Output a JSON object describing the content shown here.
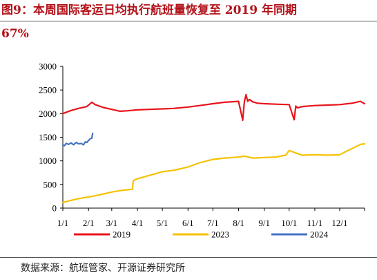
{
  "title_line1": "图9：本周国际客运日均执行航班量恢复至 2019 年同期",
  "title_line2": "67%",
  "source": "数据来源：航班管家、开源证券研究所",
  "chart_data": {
    "type": "line",
    "title": "图9：本周国际客运日均执行航班量恢复至 2019 年同期 67%",
    "xlabel": "",
    "ylabel": "",
    "x_ticks": [
      "1/1",
      "2/1",
      "3/1",
      "4/1",
      "5/1",
      "6/1",
      "7/1",
      "8/1",
      "9/1",
      "10/1",
      "11/1",
      "12/1"
    ],
    "y_ticks": [
      0,
      500,
      1000,
      1500,
      2000,
      2500,
      3000
    ],
    "ylim": [
      0,
      3000
    ],
    "x_unit": "day of year",
    "xlim": [
      1,
      365
    ],
    "grid": false,
    "legend_position": "bottom",
    "series": [
      {
        "name": "2019",
        "color": "#e8141c",
        "x": [
          1,
          10,
          20,
          30,
          36,
          40,
          50,
          60,
          70,
          80,
          91,
          105,
          121,
          135,
          152,
          166,
          182,
          196,
          213,
          218,
          220,
          222,
          224,
          226,
          230,
          236,
          244,
          258,
          274,
          280,
          282,
          284,
          290,
          305,
          320,
          335,
          350,
          360,
          365
        ],
        "y": [
          2000,
          2060,
          2110,
          2150,
          2240,
          2190,
          2130,
          2090,
          2050,
          2060,
          2080,
          2090,
          2100,
          2110,
          2140,
          2170,
          2210,
          2240,
          2260,
          1860,
          2250,
          2400,
          2260,
          2300,
          2250,
          2220,
          2210,
          2200,
          2190,
          1870,
          2160,
          2120,
          2150,
          2170,
          2180,
          2190,
          2220,
          2260,
          2210
        ]
      },
      {
        "name": "2023",
        "color": "#f5c200",
        "x": [
          1,
          10,
          20,
          30,
          40,
          50,
          60,
          70,
          80,
          85,
          86,
          91,
          105,
          121,
          135,
          152,
          166,
          182,
          196,
          213,
          220,
          230,
          244,
          258,
          270,
          274,
          280,
          290,
          305,
          320,
          335,
          345,
          350,
          360,
          365
        ],
        "y": [
          120,
          160,
          200,
          230,
          260,
          300,
          340,
          370,
          390,
          400,
          580,
          620,
          690,
          770,
          800,
          870,
          960,
          1030,
          1060,
          1080,
          1100,
          1060,
          1070,
          1080,
          1120,
          1220,
          1180,
          1120,
          1130,
          1120,
          1130,
          1220,
          1260,
          1350,
          1360
        ]
      },
      {
        "name": "2024",
        "color": "#4472c4",
        "x": [
          1,
          3,
          5,
          8,
          11,
          14,
          17,
          20,
          23,
          26,
          28,
          30,
          32,
          34,
          36,
          37
        ],
        "y": [
          1340,
          1320,
          1370,
          1350,
          1380,
          1340,
          1390,
          1360,
          1370,
          1340,
          1400,
          1390,
          1430,
          1470,
          1480,
          1580
        ]
      }
    ]
  }
}
